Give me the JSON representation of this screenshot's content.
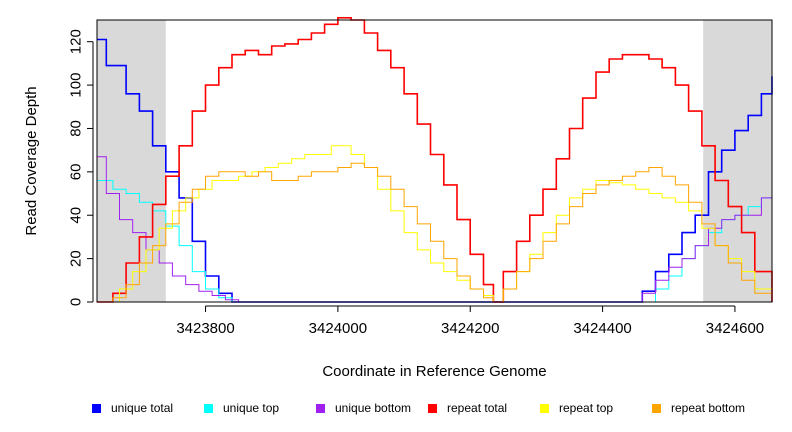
{
  "chart_data": {
    "type": "line",
    "title": "",
    "xlabel": "Coordinate in Reference Genome",
    "ylabel": "Read Coverage Depth",
    "xlim": [
      3423636,
      3424656
    ],
    "ylim": [
      0,
      130
    ],
    "x_ticks": [
      3423800,
      3424000,
      3424200,
      3424400,
      3424600
    ],
    "x_tick_labels": [
      "3423800",
      "3424000",
      "3424200",
      "3424400",
      "3424600"
    ],
    "y_ticks": [
      0,
      20,
      40,
      60,
      80,
      100,
      120
    ],
    "y_tick_labels": [
      "0",
      "20",
      "40",
      "60",
      "80",
      "100",
      "120"
    ],
    "shaded_regions": [
      [
        3423636,
        3423740
      ],
      [
        3424552,
        3424656
      ]
    ],
    "legend_position": "bottom",
    "series": [
      {
        "name": "unique total",
        "color": "#0000ff",
        "x": [
          3423636,
          3423650,
          3423680,
          3423700,
          3423720,
          3423740,
          3423760,
          3423780,
          3423800,
          3423820,
          3423840,
          3424000,
          3424200,
          3424450,
          3424460,
          3424480,
          3424500,
          3424520,
          3424540,
          3424560,
          3424580,
          3424600,
          3424620,
          3424640,
          3424656
        ],
        "y": [
          121,
          109,
          96,
          88,
          72,
          60,
          48,
          28,
          12,
          4,
          0,
          0,
          0,
          0,
          5,
          14,
          22,
          32,
          40,
          60,
          70,
          79,
          86,
          96,
          104
        ]
      },
      {
        "name": "unique top",
        "color": "#00ffff",
        "x": [
          3423636,
          3423660,
          3423680,
          3423700,
          3423720,
          3423740,
          3423760,
          3423780,
          3423800,
          3423820,
          3423840,
          3424000,
          3424200,
          3424460,
          3424480,
          3424500,
          3424520,
          3424540,
          3424560,
          3424580,
          3424600,
          3424620,
          3424640,
          3424656
        ],
        "y": [
          56,
          52,
          50,
          46,
          42,
          35,
          26,
          14,
          6,
          2,
          0,
          0,
          0,
          0,
          6,
          12,
          20,
          26,
          32,
          38,
          40,
          44,
          48,
          52
        ]
      },
      {
        "name": "unique bottom",
        "color": "#a020f0",
        "x": [
          3423636,
          3423650,
          3423670,
          3423690,
          3423710,
          3423730,
          3423750,
          3423770,
          3423790,
          3423810,
          3423830,
          3423850,
          3424000,
          3424200,
          3424450,
          3424460,
          3424480,
          3424500,
          3424520,
          3424540,
          3424560,
          3424580,
          3424600,
          3424620,
          3424640,
          3424656
        ],
        "y": [
          67,
          50,
          38,
          32,
          24,
          18,
          12,
          8,
          5,
          3,
          1,
          0,
          0,
          0,
          0,
          4,
          10,
          16,
          20,
          26,
          34,
          38,
          40,
          40,
          48,
          52
        ]
      },
      {
        "name": "repeat total",
        "color": "#ff0000",
        "x": [
          3423636,
          3423650,
          3423660,
          3423680,
          3423700,
          3423720,
          3423740,
          3423760,
          3423780,
          3423800,
          3423820,
          3423840,
          3423860,
          3423880,
          3423900,
          3423920,
          3423940,
          3423960,
          3423980,
          3424000,
          3424020,
          3424040,
          3424060,
          3424080,
          3424100,
          3424120,
          3424140,
          3424160,
          3424180,
          3424200,
          3424220,
          3424235,
          3424250,
          3424270,
          3424290,
          3424310,
          3424330,
          3424350,
          3424370,
          3424390,
          3424410,
          3424430,
          3424450,
          3424470,
          3424490,
          3424510,
          3424530,
          3424550,
          3424570,
          3424590,
          3424610,
          3424630,
          3424656
        ],
        "y": [
          0,
          0,
          4,
          18,
          30,
          45,
          58,
          72,
          88,
          100,
          108,
          114,
          116,
          114,
          118,
          119,
          121,
          124,
          128,
          131,
          130,
          124,
          116,
          108,
          96,
          82,
          68,
          54,
          38,
          22,
          8,
          0,
          14,
          28,
          40,
          52,
          66,
          80,
          94,
          106,
          112,
          114,
          114,
          112,
          108,
          100,
          88,
          72,
          56,
          44,
          32,
          14,
          0
        ]
      },
      {
        "name": "repeat top",
        "color": "#ffff00",
        "x": [
          3423636,
          3423650,
          3423670,
          3423690,
          3423710,
          3423730,
          3423750,
          3423770,
          3423790,
          3423810,
          3423830,
          3423850,
          3423870,
          3423890,
          3423910,
          3423930,
          3423950,
          3423970,
          3423990,
          3424000,
          3424020,
          3424040,
          3424060,
          3424080,
          3424100,
          3424120,
          3424140,
          3424160,
          3424180,
          3424200,
          3424220,
          3424235,
          3424250,
          3424270,
          3424290,
          3424310,
          3424330,
          3424350,
          3424370,
          3424390,
          3424410,
          3424430,
          3424450,
          3424470,
          3424490,
          3424510,
          3424530,
          3424550,
          3424570,
          3424590,
          3424610,
          3424630,
          3424656
        ],
        "y": [
          0,
          0,
          6,
          14,
          24,
          34,
          42,
          48,
          52,
          56,
          56,
          58,
          60,
          62,
          64,
          66,
          68,
          68,
          72,
          72,
          68,
          62,
          52,
          42,
          32,
          24,
          18,
          14,
          10,
          6,
          3,
          0,
          6,
          14,
          22,
          32,
          40,
          48,
          52,
          56,
          55,
          54,
          52,
          50,
          48,
          46,
          42,
          34,
          26,
          20,
          14,
          6,
          0
        ]
      },
      {
        "name": "repeat bottom",
        "color": "#ffa500",
        "x": [
          3423636,
          3423650,
          3423660,
          3423680,
          3423700,
          3423720,
          3423740,
          3423760,
          3423780,
          3423800,
          3423820,
          3423840,
          3423860,
          3423880,
          3423900,
          3423920,
          3423940,
          3423960,
          3423980,
          3424000,
          3424020,
          3424040,
          3424060,
          3424080,
          3424100,
          3424120,
          3424140,
          3424160,
          3424180,
          3424200,
          3424220,
          3424235,
          3424250,
          3424270,
          3424290,
          3424310,
          3424330,
          3424350,
          3424370,
          3424390,
          3424410,
          3424430,
          3424450,
          3424470,
          3424490,
          3424510,
          3424530,
          3424550,
          3424570,
          3424590,
          3424610,
          3424630,
          3424656
        ],
        "y": [
          0,
          0,
          2,
          8,
          18,
          26,
          36,
          46,
          52,
          58,
          60,
          60,
          58,
          60,
          56,
          56,
          58,
          60,
          60,
          62,
          64,
          62,
          58,
          52,
          44,
          36,
          28,
          20,
          12,
          6,
          2,
          0,
          6,
          14,
          20,
          28,
          36,
          44,
          50,
          54,
          56,
          58,
          60,
          62,
          58,
          54,
          46,
          36,
          26,
          18,
          10,
          4,
          0
        ]
      }
    ]
  }
}
